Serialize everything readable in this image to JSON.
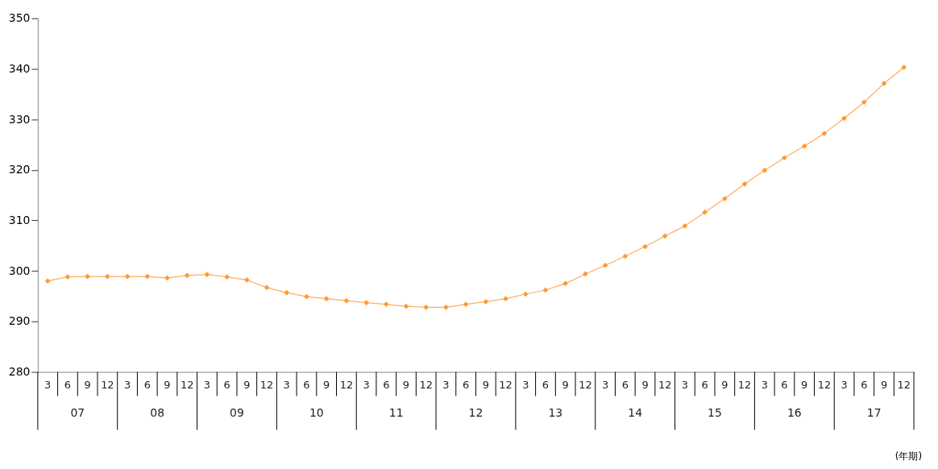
{
  "chart_data": {
    "type": "line",
    "categories": [
      "3",
      "6",
      "9",
      "12",
      "3",
      "6",
      "9",
      "12",
      "3",
      "6",
      "9",
      "12",
      "3",
      "6",
      "9",
      "12",
      "3",
      "6",
      "9",
      "12",
      "3",
      "6",
      "9",
      "12",
      "3",
      "6",
      "9",
      "12",
      "3",
      "6",
      "9",
      "12",
      "3",
      "6",
      "9",
      "12",
      "3",
      "6",
      "9",
      "12",
      "3",
      "6",
      "9",
      "12"
    ],
    "series": [
      {
        "color": "#ff9933",
        "values": [
          298.0,
          298.8,
          298.9,
          298.9,
          298.9,
          298.9,
          298.6,
          299.1,
          299.3,
          298.8,
          298.2,
          296.7,
          295.7,
          294.9,
          294.5,
          294.1,
          293.7,
          293.4,
          293.0,
          292.8,
          292.8,
          293.4,
          293.9,
          294.5,
          295.4,
          296.2,
          297.5,
          299.4,
          301.1,
          302.9,
          304.8,
          306.9,
          308.9,
          311.6,
          314.3,
          317.2,
          319.9,
          322.4,
          324.7,
          327.2,
          330.2,
          333.4,
          337.1,
          340.3
        ]
      }
    ],
    "annotations": [
      "07",
      "08",
      "09",
      "10",
      "11",
      "12",
      "13",
      "14",
      "15",
      "16",
      "17",
      "(年期)"
    ],
    "ylim": [
      280,
      350
    ],
    "yticks": [
      280,
      290,
      300,
      310,
      320,
      330,
      340,
      350
    ],
    "grid": false,
    "marker": "diamond",
    "line_style": "solid"
  }
}
